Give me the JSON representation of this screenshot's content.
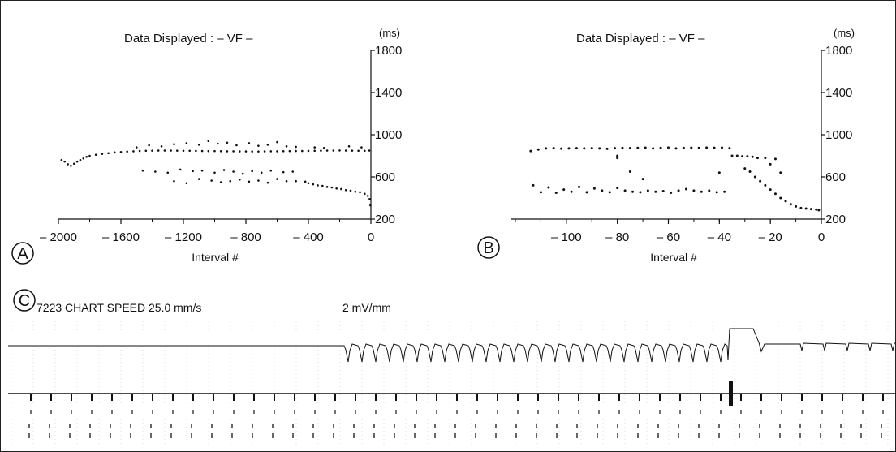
{
  "chart_data": [
    {
      "type": "scatter",
      "panel": "A",
      "title": "Data Displayed : – VF –",
      "xlabel": "Interval #",
      "ylabel": "(ms)",
      "xlim": [
        -2000,
        0
      ],
      "ylim": [
        200,
        1800
      ],
      "xticks": [
        -2000,
        -1600,
        -1200,
        -800,
        -400,
        0
      ],
      "xtick_labels": [
        "– 2000",
        "– 1600",
        "– 1200",
        "– 800",
        "– 400",
        "0"
      ],
      "yticks": [
        200,
        600,
        1000,
        1400,
        1800
      ],
      "ytick_labels": [
        "200",
        "600",
        "1000",
        "1400",
        "1800"
      ],
      "series": [
        {
          "points": [
            [
              -1980,
              760
            ],
            [
              -1960,
              745
            ],
            [
              -1940,
              720
            ],
            [
              -1920,
              705
            ],
            [
              -1900,
              725
            ],
            [
              -1880,
              745
            ],
            [
              -1860,
              760
            ],
            [
              -1840,
              775
            ],
            [
              -1820,
              790
            ],
            [
              -1800,
              800
            ],
            [
              -1760,
              810
            ],
            [
              -1720,
              818
            ],
            [
              -1680,
              825
            ],
            [
              -1640,
              832
            ],
            [
              -1600,
              836
            ],
            [
              -1560,
              840
            ],
            [
              -1520,
              843
            ],
            [
              -1480,
              846
            ],
            [
              -1440,
              848
            ],
            [
              -1400,
              849
            ],
            [
              -1360,
              850
            ],
            [
              -1320,
              850
            ],
            [
              -1280,
              850
            ],
            [
              -1240,
              849
            ],
            [
              -1200,
              848
            ],
            [
              -1160,
              848
            ],
            [
              -1120,
              847
            ],
            [
              -1080,
              846
            ],
            [
              -1040,
              845
            ],
            [
              -1000,
              845
            ],
            [
              -960,
              844
            ],
            [
              -920,
              843
            ],
            [
              -880,
              843
            ],
            [
              -840,
              842
            ],
            [
              -800,
              842
            ],
            [
              -760,
              841
            ],
            [
              -720,
              841
            ],
            [
              -680,
              842
            ],
            [
              -640,
              843
            ],
            [
              -600,
              843
            ],
            [
              -560,
              844
            ],
            [
              -520,
              845
            ],
            [
              -480,
              846
            ],
            [
              -440,
              846
            ],
            [
              -400,
              847
            ],
            [
              -360,
              848
            ],
            [
              -320,
              849
            ],
            [
              -280,
              850
            ],
            [
              -240,
              850
            ],
            [
              -200,
              851
            ],
            [
              -160,
              850
            ],
            [
              -120,
              849
            ],
            [
              -80,
              848
            ],
            [
              -40,
              848
            ],
            [
              -10,
              850
            ],
            [
              -1500,
              880
            ],
            [
              -1420,
              900
            ],
            [
              -1340,
              890
            ],
            [
              -1260,
              910
            ],
            [
              -1180,
              920
            ],
            [
              -1100,
              905
            ],
            [
              -1040,
              940
            ],
            [
              -980,
              915
            ],
            [
              -920,
              925
            ],
            [
              -860,
              900
            ],
            [
              -780,
              920
            ],
            [
              -720,
              895
            ],
            [
              -660,
              905
            ],
            [
              -600,
              930
            ],
            [
              -540,
              890
            ],
            [
              -480,
              885
            ],
            [
              -360,
              880
            ],
            [
              -300,
              875
            ],
            [
              -140,
              890
            ],
            [
              -60,
              880
            ],
            [
              -1460,
              660
            ],
            [
              -1380,
              650
            ],
            [
              -1300,
              640
            ],
            [
              -1220,
              670
            ],
            [
              -1140,
              655
            ],
            [
              -1080,
              660
            ],
            [
              -1000,
              640
            ],
            [
              -940,
              665
            ],
            [
              -880,
              650
            ],
            [
              -820,
              630
            ],
            [
              -760,
              655
            ],
            [
              -700,
              640
            ],
            [
              -640,
              660
            ],
            [
              -560,
              645
            ],
            [
              -500,
              650
            ],
            [
              -1260,
              560
            ],
            [
              -1180,
              540
            ],
            [
              -1100,
              580
            ],
            [
              -1020,
              565
            ],
            [
              -960,
              550
            ],
            [
              -900,
              560
            ],
            [
              -840,
              575
            ],
            [
              -780,
              555
            ],
            [
              -720,
              565
            ],
            [
              -660,
              545
            ],
            [
              -600,
              580
            ],
            [
              -540,
              560
            ],
            [
              -480,
              560
            ],
            [
              -420,
              555
            ],
            [
              -400,
              540
            ],
            [
              -370,
              530
            ],
            [
              -340,
              520
            ],
            [
              -310,
              515
            ],
            [
              -280,
              505
            ],
            [
              -250,
              500
            ],
            [
              -220,
              490
            ],
            [
              -190,
              485
            ],
            [
              -160,
              475
            ],
            [
              -130,
              470
            ],
            [
              -100,
              460
            ],
            [
              -70,
              455
            ],
            [
              -40,
              440
            ],
            [
              -20,
              420
            ],
            [
              -8,
              390
            ],
            [
              -3,
              330
            ]
          ]
        }
      ]
    },
    {
      "type": "scatter",
      "panel": "B",
      "title": "Data Displayed : – VF –",
      "xlabel": "Interval #",
      "ylabel": "(ms)",
      "xlim": [
        -120,
        0
      ],
      "ylim": [
        200,
        1800
      ],
      "xticks": [
        -100,
        -80,
        -60,
        -40,
        -20,
        0
      ],
      "xtick_labels": [
        "– 100",
        "– 80",
        "– 60",
        "– 40",
        "– 20",
        "0"
      ],
      "yticks": [
        200,
        600,
        1000,
        1400,
        1800
      ],
      "ytick_labels": [
        "200",
        "600",
        "1000",
        "1400",
        "1800"
      ],
      "series": [
        {
          "points": [
            [
              -114,
              845
            ],
            [
              -111,
              860
            ],
            [
              -108,
              870
            ],
            [
              -105,
              872
            ],
            [
              -102,
              868
            ],
            [
              -99,
              870
            ],
            [
              -96,
              872
            ],
            [
              -93,
              870
            ],
            [
              -90,
              872
            ],
            [
              -87,
              870
            ],
            [
              -84,
              866
            ],
            [
              -81,
              872
            ],
            [
              -78,
              875
            ],
            [
              -75,
              873
            ],
            [
              -72,
              875
            ],
            [
              -69,
              877
            ],
            [
              -66,
              870
            ],
            [
              -63,
              875
            ],
            [
              -60,
              878
            ],
            [
              -57,
              870
            ],
            [
              -54,
              875
            ],
            [
              -51,
              877
            ],
            [
              -48,
              875
            ],
            [
              -45,
              878
            ],
            [
              -42,
              876
            ],
            [
              -39,
              878
            ],
            [
              -36,
              872
            ],
            [
              -113,
              520
            ],
            [
              -110,
              455
            ],
            [
              -107,
              500
            ],
            [
              -104,
              450
            ],
            [
              -101,
              480
            ],
            [
              -98,
              460
            ],
            [
              -95,
              505
            ],
            [
              -92,
              455
            ],
            [
              -89,
              490
            ],
            [
              -86,
              470
            ],
            [
              -83,
              455
            ],
            [
              -80,
              495
            ],
            [
              -77,
              470
            ],
            [
              -74,
              460
            ],
            [
              -71,
              455
            ],
            [
              -68,
              470
            ],
            [
              -65,
              460
            ],
            [
              -62,
              465
            ],
            [
              -59,
              450
            ],
            [
              -56,
              470
            ],
            [
              -53,
              485
            ],
            [
              -50,
              470
            ],
            [
              -47,
              460
            ],
            [
              -44,
              470
            ],
            [
              -41,
              455
            ],
            [
              -38,
              460
            ],
            [
              -80,
              800
            ],
            [
              -80,
              780
            ],
            [
              -75,
              650
            ],
            [
              -70,
              580
            ],
            [
              -40,
              640
            ],
            [
              -35,
              800
            ],
            [
              -33,
              800
            ],
            [
              -31,
              795
            ],
            [
              -29,
              795
            ],
            [
              -27,
              790
            ],
            [
              -25,
              780
            ],
            [
              -22,
              780
            ],
            [
              -20,
              720
            ],
            [
              -18,
              770
            ],
            [
              -30,
              680
            ],
            [
              -28,
              650
            ],
            [
              -26,
              600
            ],
            [
              -24,
              560
            ],
            [
              -22,
              520
            ],
            [
              -20,
              480
            ],
            [
              -18,
              440
            ],
            [
              -16,
              400
            ],
            [
              -14,
              370
            ],
            [
              -12,
              340
            ],
            [
              -10,
              320
            ],
            [
              -8,
              305
            ],
            [
              -6,
              300
            ],
            [
              -4,
              295
            ],
            [
              -2,
              290
            ],
            [
              -1,
              285
            ],
            [
              -16,
              640
            ]
          ]
        }
      ]
    }
  ],
  "panel_labels": {
    "a": "A",
    "b": "B",
    "c": "C"
  },
  "strip": {
    "chart_speed": "7223 CHART SPEED 25.0 mm/s",
    "gain": "2 mV/mm"
  }
}
